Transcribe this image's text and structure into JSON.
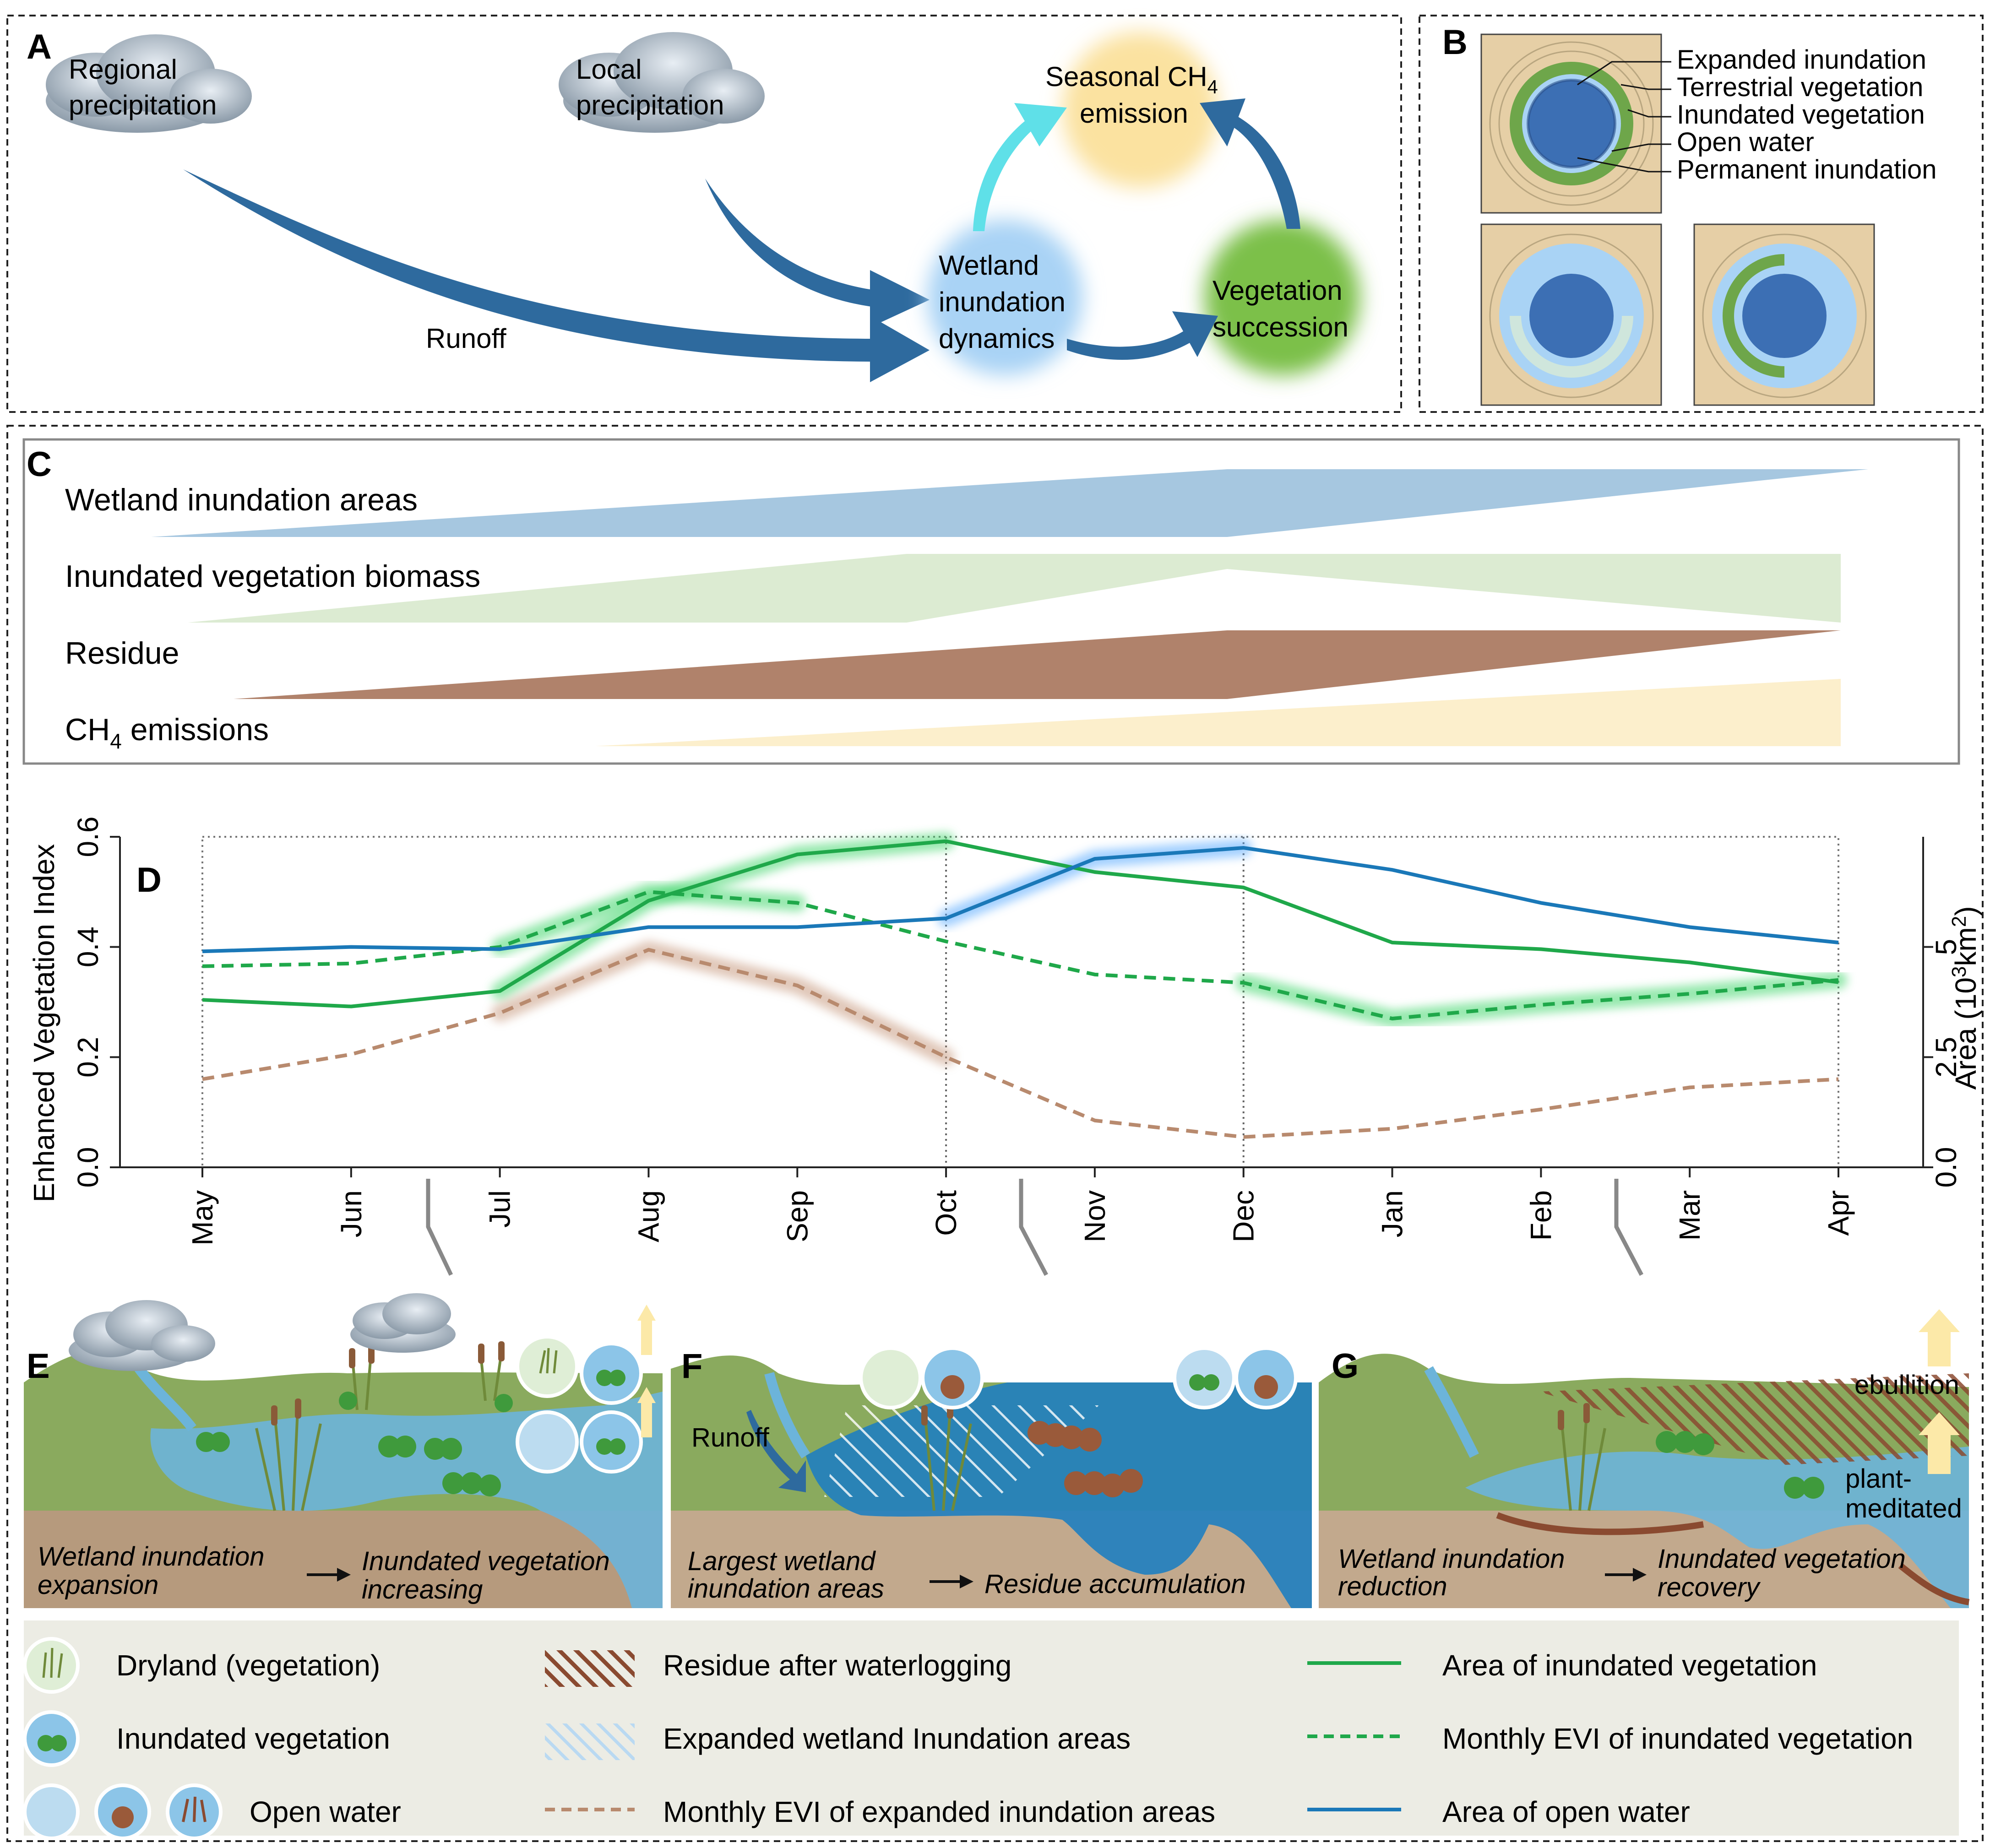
{
  "panel_letters": {
    "a": "A",
    "b": "B",
    "c": "C",
    "d": "D",
    "e": "E",
    "f": "F",
    "g": "G"
  },
  "panel_a": {
    "regional_precip": [
      "Regional",
      "precipitation"
    ],
    "local_precip": [
      "Local",
      "precipitation"
    ],
    "runoff": "Runoff",
    "seasonal_ch4": [
      "Seasonal CH",
      "4",
      "emission"
    ],
    "wetland_dynamics": [
      "Wetland",
      "inundation",
      "dynamics"
    ],
    "vegetation_succession": [
      "Vegetation",
      "succession"
    ],
    "colors": {
      "arrow": "#2e6a9e",
      "cyan_arrow": "#5fe0e8",
      "ch4": "#fbe2a0",
      "wetland": "#a9d3f5",
      "veg": "#7cc04a"
    }
  },
  "panel_b": {
    "labels": [
      "Expanded inundation",
      "Terrestrial vegetation",
      "Inundated vegetation",
      "Open water",
      "Permanent inundation"
    ],
    "colors": {
      "sand": "#e6cfa6",
      "veg": "#6ea64a",
      "light_water": "#a9d3f5",
      "deep_water": "#3c6fb4"
    }
  },
  "panel_c": {
    "rows": [
      {
        "label": "Wetland inundation areas",
        "color": "#a6c7e0"
      },
      {
        "label": "Inundated vegetation biomass",
        "color": "#dcebd2"
      },
      {
        "label": "Residue",
        "color": "#b0826b"
      },
      {
        "label": "CH",
        "sub": "4",
        "label_after": " emissions",
        "color": "#fcefcc"
      }
    ]
  },
  "chart_data": {
    "type": "line",
    "categories": [
      "May",
      "Jun",
      "Jul",
      "Aug",
      "Sep",
      "Oct",
      "Nov",
      "Dec",
      "Jan",
      "Feb",
      "Mar",
      "Apr"
    ],
    "ylabel": "Enhanced Vegetation Index",
    "ylim": [
      0.0,
      0.6
    ],
    "yticks": [
      "0.0",
      "0.2",
      "0.4",
      "0.6"
    ],
    "y2label": "Area (10³km²)",
    "y2label_parts": [
      "Area (10",
      "3",
      "km",
      "2",
      ")"
    ],
    "y2lim": [
      0.0,
      7.5
    ],
    "y2ticks": [
      "0.0",
      "2.5",
      "5"
    ],
    "series": [
      {
        "name": "Area of inundated vegetation",
        "axis": "right",
        "style": "solid",
        "color": "#1fa84a",
        "values": [
          3.8,
          3.65,
          4.0,
          6.05,
          7.1,
          7.4,
          6.7,
          6.35,
          5.1,
          4.95,
          4.65,
          4.2
        ]
      },
      {
        "name": "Monthly EVI of inundated vegetation",
        "axis": "left",
        "style": "dashed",
        "color": "#1fa84a",
        "values": [
          0.365,
          0.37,
          0.4,
          0.5,
          0.48,
          0.41,
          0.35,
          0.335,
          0.27,
          0.295,
          0.315,
          0.34
        ]
      },
      {
        "name": "Area of open water",
        "axis": "right",
        "style": "solid",
        "color": "#1a78b8",
        "values": [
          4.9,
          5.0,
          4.95,
          5.45,
          5.45,
          5.65,
          7.0,
          7.25,
          6.75,
          6.0,
          5.45,
          5.1
        ]
      },
      {
        "name": "Monthly EVI of expanded inundation areas",
        "axis": "left",
        "style": "dashed",
        "color": "#b88a6e",
        "values": [
          0.16,
          0.205,
          0.28,
          0.395,
          0.33,
          0.2,
          0.085,
          0.055,
          0.07,
          0.105,
          0.145,
          0.16
        ]
      }
    ],
    "grid": false
  },
  "panel_e": {
    "left": [
      "Wetland inundation",
      "expansion"
    ],
    "right": [
      "Inundated vegetation",
      "increasing"
    ]
  },
  "panel_f": {
    "runoff": "Runoff",
    "left": [
      "Largest wetland",
      "inundation areas"
    ],
    "right": "Residue accumulation"
  },
  "panel_g": {
    "ebullition": "ebullition",
    "plant": [
      "plant-",
      "meditated"
    ],
    "left": [
      "Wetland inundation",
      "reduction"
    ],
    "right": [
      "Inundated vegetation",
      "recovery"
    ]
  },
  "legend": {
    "dryland": "Dryland (vegetation)",
    "inundated_veg": "Inundated vegetation",
    "open_water": "Open water",
    "residue": "Residue after waterlogging",
    "expanded": "Expanded wetland Inundation areas",
    "evi_expanded": "Monthly EVI of expanded inundation areas",
    "area_veg": "Area of inundated vegetation",
    "evi_veg": "Monthly EVI of inundated vegetation",
    "area_water": "Area of open water"
  }
}
